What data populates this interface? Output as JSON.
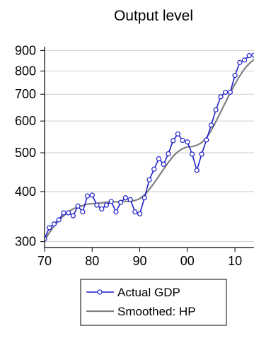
{
  "chart_data": {
    "type": "line",
    "title": "Output level",
    "xlabel": "",
    "ylabel": "",
    "y_scale": "log",
    "xlim": [
      1970,
      2014
    ],
    "ylim": [
      290,
      920
    ],
    "x_ticks": [
      1970,
      1980,
      1990,
      2000,
      2010
    ],
    "x_tick_labels": [
      "70",
      "80",
      "90",
      "00",
      "10"
    ],
    "y_ticks": [
      300,
      400,
      500,
      600,
      700,
      800,
      900
    ],
    "y_tick_labels": [
      "300",
      "400",
      "500",
      "600",
      "700",
      "800",
      "900"
    ],
    "grid": "horizontal",
    "legend_position": "bottom-center",
    "series": [
      {
        "name": "Actual GDP",
        "color": "#1f1fcc",
        "marker": "circle",
        "x": [
          1970,
          1971,
          1972,
          1973,
          1974,
          1975,
          1976,
          1977,
          1978,
          1979,
          1980,
          1981,
          1982,
          1983,
          1984,
          1985,
          1986,
          1987,
          1988,
          1989,
          1990,
          1991,
          1992,
          1993,
          1994,
          1995,
          1996,
          1997,
          1998,
          1999,
          2000,
          2001,
          2002,
          2003,
          2004,
          2005,
          2006,
          2007,
          2008,
          2009,
          2010,
          2011,
          2012,
          2013,
          2014
        ],
        "values": [
          305,
          325,
          332,
          340,
          354,
          354,
          348,
          368,
          356,
          390,
          392,
          370,
          362,
          370,
          378,
          356,
          376,
          386,
          382,
          356,
          352,
          386,
          428,
          455,
          483,
          468,
          497,
          536,
          557,
          537,
          532,
          496,
          452,
          496,
          538,
          586,
          640,
          690,
          708,
          708,
          780,
          840,
          852,
          874,
          876
        ]
      },
      {
        "name": "Smoothed: HP",
        "color": "#808080",
        "marker": "none",
        "x": [
          1970,
          1971,
          1972,
          1973,
          1974,
          1975,
          1976,
          1977,
          1978,
          1979,
          1980,
          1981,
          1982,
          1983,
          1984,
          1985,
          1986,
          1987,
          1988,
          1989,
          1990,
          1991,
          1992,
          1993,
          1994,
          1995,
          1996,
          1997,
          1998,
          1999,
          2000,
          2001,
          2002,
          2003,
          2004,
          2005,
          2006,
          2007,
          2008,
          2009,
          2010,
          2011,
          2012,
          2013,
          2014
        ],
        "values": [
          302,
          316,
          328,
          339,
          348,
          356,
          362,
          366,
          369,
          372,
          373,
          374,
          375,
          376,
          377,
          377,
          378,
          378,
          378,
          380,
          384,
          392,
          405,
          420,
          437,
          455,
          473,
          490,
          503,
          512,
          517,
          518,
          522,
          530,
          545,
          568,
          598,
          632,
          668,
          705,
          742,
          778,
          810,
          835,
          855
        ]
      }
    ]
  }
}
